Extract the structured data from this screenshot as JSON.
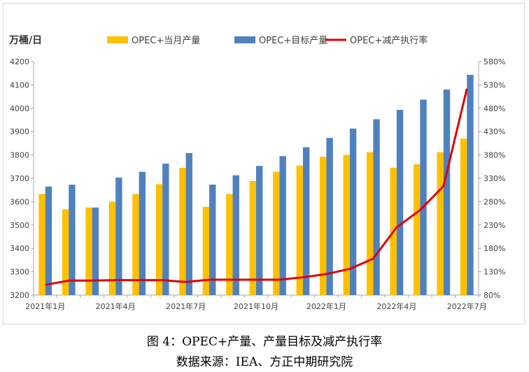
{
  "chart_data": {
    "type": "bar",
    "y_unit_label": "万桶/日",
    "categories": [
      "2021年1月",
      "2021年2月",
      "2021年3月",
      "2021年4月",
      "2021年5月",
      "2021年6月",
      "2021年7月",
      "2021年8月",
      "2021年9月",
      "2021年10月",
      "2021年11月",
      "2021年12月",
      "2022年1月",
      "2022年2月",
      "2022年3月",
      "2022年4月",
      "2022年5月",
      "2022年6月",
      "2022年7月"
    ],
    "x_tick_labels": [
      "2021年1月",
      "2021年4月",
      "2021年7月",
      "2021年10月",
      "2022年1月",
      "2022年4月",
      "2022年7月"
    ],
    "x_tick_indices": [
      0,
      3,
      6,
      9,
      12,
      15,
      18
    ],
    "ylim_left": [
      3200,
      4200
    ],
    "left_ticks": [
      3200,
      3300,
      3400,
      3500,
      3600,
      3700,
      3800,
      3900,
      4000,
      4100,
      4200
    ],
    "ylim_right": [
      80,
      580
    ],
    "right_ticks": [
      "80%",
      "130%",
      "180%",
      "230%",
      "280%",
      "330%",
      "380%",
      "430%",
      "480%",
      "530%",
      "580%"
    ],
    "series": [
      {
        "name": "OPEC+当月产量",
        "type": "bar",
        "axis": "left",
        "color": "#FFC000",
        "values": [
          3633,
          3567,
          3575,
          3600,
          3633,
          3675,
          3745,
          3578,
          3633,
          3688,
          3728,
          3755,
          3792,
          3800,
          3812,
          3745,
          3760,
          3812,
          3870
        ]
      },
      {
        "name": "OPEC+目标产量",
        "type": "bar",
        "axis": "left",
        "color": "#4F81BD",
        "values": [
          3665,
          3673,
          3575,
          3703,
          3728,
          3763,
          3808,
          3673,
          3713,
          3753,
          3795,
          3833,
          3873,
          3913,
          3953,
          3993,
          4037,
          4080,
          4143
        ]
      },
      {
        "name": "OPEC+减产执行率",
        "type": "line",
        "axis": "right",
        "color": "#E00000",
        "values": [
          102,
          111,
          111,
          112,
          112,
          112,
          108,
          113,
          113,
          113,
          113,
          118,
          125,
          136,
          158,
          225,
          262,
          313,
          522
        ]
      }
    ],
    "legend_position": "top",
    "grid": false
  },
  "caption": {
    "title": "图 4：OPEC+产量、产量目标及减产执行率",
    "source": "数据来源：IEA、方正中期研究院"
  }
}
